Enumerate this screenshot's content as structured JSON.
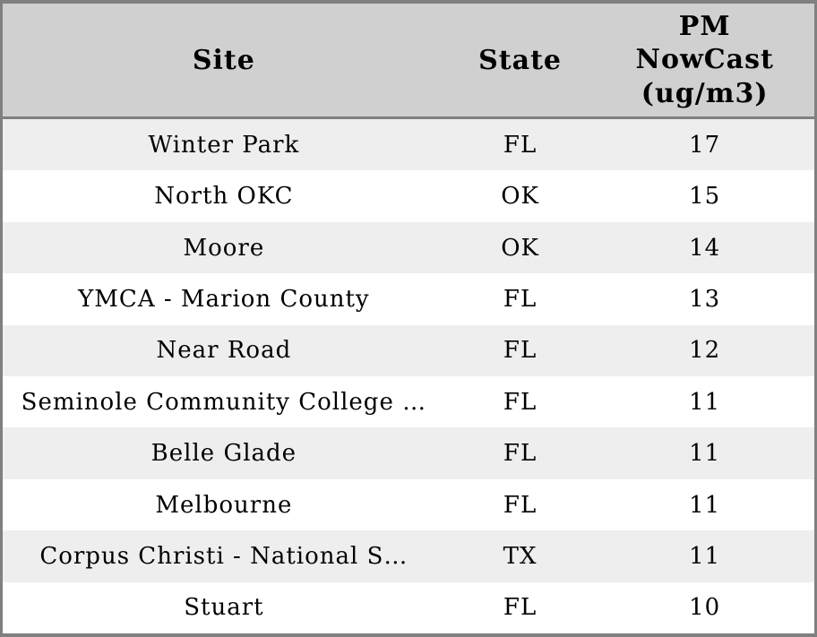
{
  "table": {
    "header": {
      "site": "Site",
      "state": "State",
      "pm": "PM\nNowCast\n(ug/m3)"
    },
    "rows": [
      {
        "site": "Winter Park",
        "state": "FL",
        "pm": "17"
      },
      {
        "site": "North OKC",
        "state": "OK",
        "pm": "15"
      },
      {
        "site": "Moore",
        "state": "OK",
        "pm": "14"
      },
      {
        "site": "YMCA - Marion County",
        "state": "FL",
        "pm": "13"
      },
      {
        "site": "Near Road",
        "state": "FL",
        "pm": "12"
      },
      {
        "site": "Seminole Community College …",
        "state": "FL",
        "pm": "11"
      },
      {
        "site": "Belle Glade",
        "state": "FL",
        "pm": "11"
      },
      {
        "site": "Melbourne",
        "state": "FL",
        "pm": "11"
      },
      {
        "site": "Corpus Christi - National S…",
        "state": "TX",
        "pm": "11"
      },
      {
        "site": "Stuart",
        "state": "FL",
        "pm": "10"
      }
    ]
  },
  "colors": {
    "border": "#808080",
    "header_bg": "#d0d0d0",
    "row_alt_bg": "#eeeeee",
    "row_bg": "#ffffff",
    "text": "#000000"
  },
  "chart_data": {
    "type": "table",
    "columns": [
      "Site",
      "State",
      "PM NowCast (ug/m3)"
    ],
    "rows": [
      [
        "Winter Park",
        "FL",
        17
      ],
      [
        "North OKC",
        "OK",
        15
      ],
      [
        "Moore",
        "OK",
        14
      ],
      [
        "YMCA - Marion County",
        "FL",
        13
      ],
      [
        "Near Road",
        "FL",
        12
      ],
      [
        "Seminole Community College …",
        "FL",
        11
      ],
      [
        "Belle Glade",
        "FL",
        11
      ],
      [
        "Melbourne",
        "FL",
        11
      ],
      [
        "Corpus Christi - National S…",
        "TX",
        11
      ],
      [
        "Stuart",
        "FL",
        10
      ]
    ],
    "layout": {
      "header_background": "#d0d0d0",
      "alternating_row_colors": [
        "#eeeeee",
        "#ffffff"
      ],
      "all_columns_centered": true
    }
  }
}
